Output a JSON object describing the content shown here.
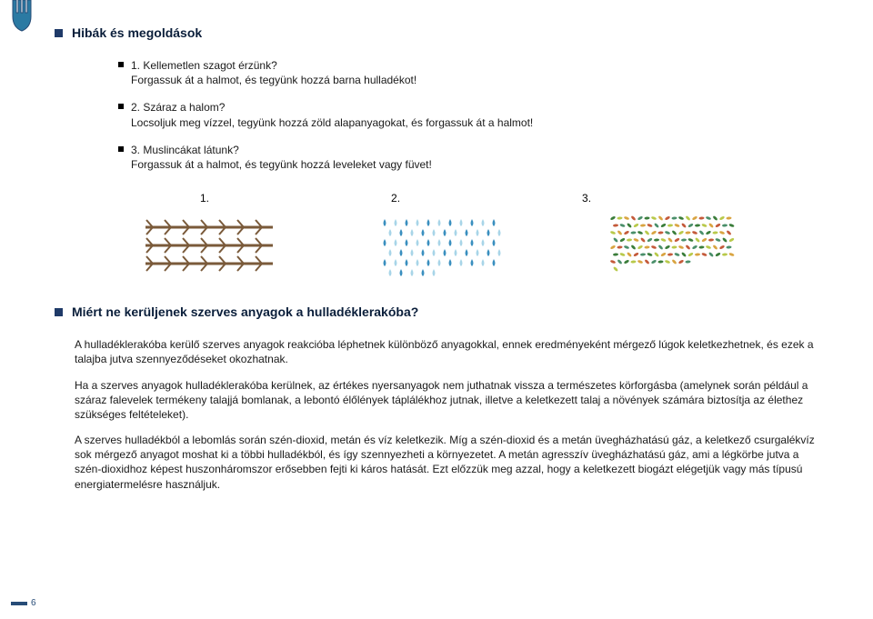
{
  "style": {
    "page_bg": "#ffffff",
    "text_color": "#1a1a1a",
    "heading_color": "#0a1e3a",
    "bullet_color": "#1f3a68",
    "page_num_color": "#274c77",
    "body_font_size": 12,
    "heading_font_size": 14,
    "line_height": 1.35
  },
  "hand_icon": {
    "fill": "#2b7aa3",
    "stroke": "#274c77"
  },
  "section1": {
    "title": "Hibák és megoldások",
    "items": [
      {
        "num": "1.",
        "title": "Kellemetlen szagot érzünk?",
        "body": "Forgassuk át a halmot, és tegyünk hozzá barna hulladékot!"
      },
      {
        "num": "2.",
        "title": "Száraz a halom?",
        "body": "Locsoljuk meg vízzel, tegyünk hozzá zöld alapanyagokat, és forgassuk át a halmot!"
      },
      {
        "num": "3.",
        "title": "Muslincákat látunk?",
        "body": "Forgassuk át a halmot, és tegyünk hozzá leveleket vagy füvet!"
      }
    ]
  },
  "figures": {
    "labels": [
      "1.",
      "2.",
      "3."
    ],
    "fig1": {
      "type": "branches",
      "stroke": "#7a5a3a",
      "line_width": 2
    },
    "fig2": {
      "type": "droplets",
      "colors": [
        "#3a8fbf",
        "#a8d5e8"
      ],
      "count": 60
    },
    "fig3": {
      "type": "leaves",
      "colors": [
        "#3a7d3a",
        "#b8c94a",
        "#d9a441",
        "#c45a3a",
        "#4a8f6a"
      ],
      "count": 120
    }
  },
  "section2": {
    "title": "Miért ne kerüljenek szerves anyagok a hulladéklerakóba?",
    "paragraphs": [
      "A hulladéklerakóba kerülő szerves anyagok reakcióba léphetnek különböző anyagokkal, ennek eredményeként mérgező lúgok keletkezhetnek, és ezek a talajba jutva szennyeződéseket okozhatnak.",
      "Ha a szerves anyagok hulladéklerakóba kerülnek, az értékes nyersanyagok nem juthatnak vissza a természetes körforgásba (amelynek során például a száraz falevelek termékeny talajjá bomlanak, a lebontó élőlények táplálékhoz jutnak, illetve a keletkezett talaj a növények számára biztosítja az élethez szükséges feltételeket).",
      "A szerves hulladékból a lebomlás során szén-dioxid, metán és víz keletkezik. Míg a szén-dioxid és a metán üvegházhatású gáz, a keletkező csurgalékvíz sok mérgező anyagot moshat ki a többi hulladékból, és így szennyezheti a környezetet. A metán agresszív üvegházhatású gáz, ami a légkörbe jutva a szén-dioxidhoz képest huszonháromszor erősebben fejti ki káros hatását. Ezt előzzük meg azzal, hogy a keletkezett biogázt elégetjük vagy más típusú energiatermelésre használjuk."
    ]
  },
  "page_number": "6"
}
